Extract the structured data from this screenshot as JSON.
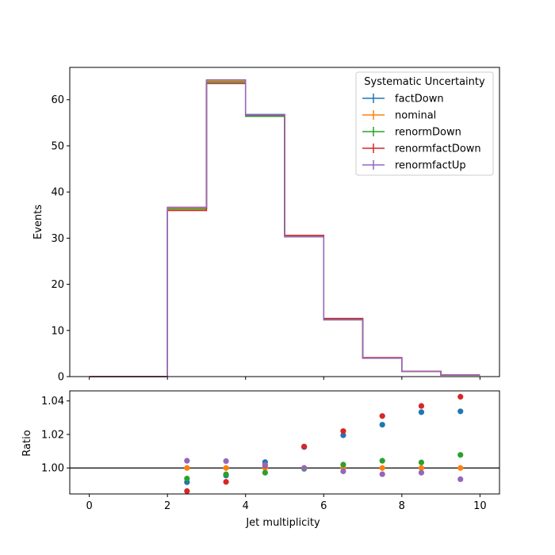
{
  "chart_data": [
    {
      "type": "line",
      "drawstyle": "steps",
      "title": "",
      "xlabel": "",
      "ylabel": "Events",
      "xlim": [
        -0.5,
        10.5
      ],
      "ylim": [
        0,
        67
      ],
      "xticks": [
        0,
        2,
        4,
        6,
        8,
        10
      ],
      "yticks": [
        0,
        10,
        20,
        30,
        40,
        50,
        60
      ],
      "x_tick_labels_shown": false,
      "bin_edges": [
        0,
        1,
        2,
        3,
        4,
        5,
        6,
        7,
        8,
        9,
        10
      ],
      "legend": {
        "title": "Systematic Uncertainty",
        "placement": "top-right"
      },
      "series": [
        {
          "name": "factDown",
          "color": "#1f77b4",
          "values": [
            0,
            0,
            36.5,
            64.0,
            56.8,
            30.6,
            12.5,
            4.1,
            1.15,
            0.35
          ]
        },
        {
          "name": "nominal",
          "color": "#ff7f0e",
          "values": [
            0,
            0,
            36.5,
            64.0,
            56.6,
            30.3,
            12.3,
            4.0,
            1.12,
            0.34
          ]
        },
        {
          "name": "renormDown",
          "color": "#2ca02c",
          "values": [
            0,
            0,
            36.3,
            63.8,
            56.4,
            30.3,
            12.3,
            4.0,
            1.12,
            0.34
          ]
        },
        {
          "name": "renormfactDown",
          "color": "#d62728",
          "values": [
            0,
            0,
            36.0,
            63.5,
            56.6,
            30.6,
            12.6,
            4.1,
            1.16,
            0.35
          ]
        },
        {
          "name": "renormfactUp",
          "color": "#9467bd",
          "values": [
            0,
            0,
            36.7,
            64.3,
            56.7,
            30.3,
            12.3,
            3.98,
            1.12,
            0.33
          ]
        }
      ]
    },
    {
      "type": "scatter",
      "title": "",
      "xlabel": "Jet multiplicity",
      "ylabel": "Ratio",
      "xlim": [
        -0.5,
        10.5
      ],
      "ylim": [
        0.9845,
        1.046
      ],
      "xticks": [
        0,
        2,
        4,
        6,
        8,
        10
      ],
      "yticks": [
        1.0,
        1.02,
        1.04
      ],
      "ytick_labels": [
        "1.00",
        "1.02",
        "1.04"
      ],
      "reference_line": 1.0,
      "x": [
        2.5,
        3.5,
        4.5,
        5.5,
        6.5,
        7.5,
        8.5,
        9.5
      ],
      "series": [
        {
          "name": "factDown",
          "color": "#1f77b4",
          "values": [
            0.9915,
            0.9955,
            1.0035,
            1.0125,
            1.0195,
            1.0258,
            1.0333,
            1.0338
          ]
        },
        {
          "name": "nominal",
          "color": "#ff7f0e",
          "values": [
            1.0,
            1.0,
            1.0,
            1.0,
            1.0,
            1.0,
            1.0,
            1.0
          ]
        },
        {
          "name": "renormDown",
          "color": "#2ca02c",
          "values": [
            0.9937,
            0.9962,
            0.9972,
            0.9995,
            1.002,
            1.0043,
            1.0033,
            1.0078
          ]
        },
        {
          "name": "renormfactDown",
          "color": "#d62728",
          "values": [
            0.9862,
            0.9917,
            1.0015,
            1.0128,
            1.022,
            1.031,
            1.037,
            1.0425
          ]
        },
        {
          "name": "renormfactUp",
          "color": "#9467bd",
          "values": [
            1.0043,
            1.0041,
            1.0018,
            1.0,
            0.998,
            0.9963,
            0.9972,
            0.9933
          ]
        }
      ]
    }
  ]
}
